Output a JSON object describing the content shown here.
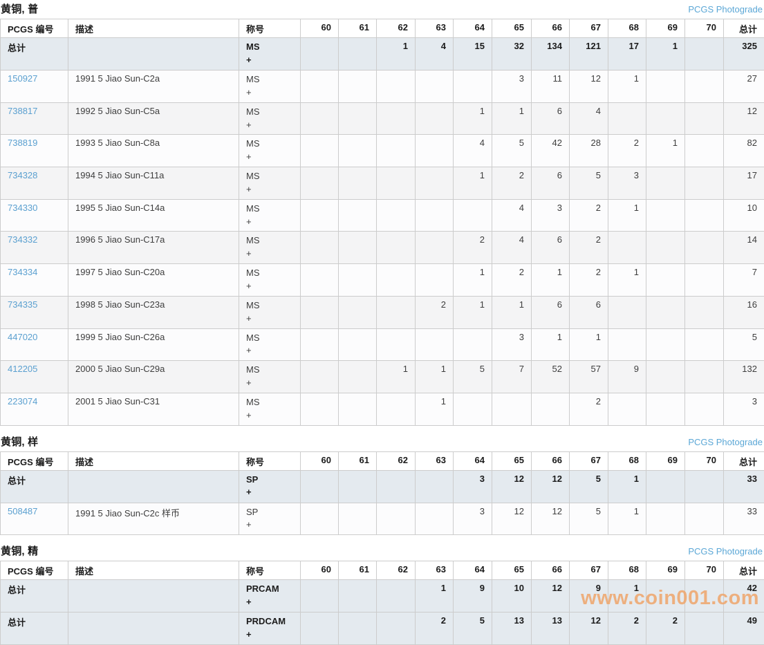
{
  "photograde_label": "PCGS Photograde",
  "watermark_text": "www.coin001.com",
  "colors": {
    "link": "#5ba0d0",
    "photograde": "#5ba7d6",
    "total_row_bg": "#e4eaef",
    "watermark": "#f0a366"
  },
  "columns": [
    "PCGS 编号",
    "描述",
    "称号",
    "60",
    "61",
    "62",
    "63",
    "64",
    "65",
    "66",
    "67",
    "68",
    "69",
    "70",
    "总计"
  ],
  "totals_label": "总计",
  "sections": [
    {
      "title": "黄铜, 普",
      "rows": [
        {
          "id": "总计",
          "is_link": false,
          "is_total": true,
          "desc": "",
          "designation": "MS\n+",
          "grades": [
            "",
            "",
            "1",
            "4",
            "15",
            "32",
            "134",
            "121",
            "17",
            "1",
            ""
          ],
          "total": "325"
        },
        {
          "id": "150927",
          "is_link": true,
          "is_total": false,
          "desc": "1991 5 Jiao Sun-C2a",
          "designation": "MS\n+",
          "grades": [
            "",
            "",
            "",
            "",
            "",
            "3",
            "11",
            "12",
            "1",
            "",
            ""
          ],
          "total": "27"
        },
        {
          "id": "738817",
          "is_link": true,
          "is_total": false,
          "desc": "1992 5 Jiao Sun-C5a",
          "designation": "MS\n+",
          "grades": [
            "",
            "",
            "",
            "",
            "1",
            "1",
            "6",
            "4",
            "",
            "",
            ""
          ],
          "total": "12"
        },
        {
          "id": "738819",
          "is_link": true,
          "is_total": false,
          "desc": "1993 5 Jiao Sun-C8a",
          "designation": "MS\n+",
          "grades": [
            "",
            "",
            "",
            "",
            "4",
            "5",
            "42",
            "28",
            "2",
            "1",
            ""
          ],
          "total": "82"
        },
        {
          "id": "734328",
          "is_link": true,
          "is_total": false,
          "desc": "1994 5 Jiao Sun-C11a",
          "designation": "MS\n+",
          "grades": [
            "",
            "",
            "",
            "",
            "1",
            "2",
            "6",
            "5",
            "3",
            "",
            ""
          ],
          "total": "17"
        },
        {
          "id": "734330",
          "is_link": true,
          "is_total": false,
          "desc": "1995 5 Jiao Sun-C14a",
          "designation": "MS\n+",
          "grades": [
            "",
            "",
            "",
            "",
            "",
            "4",
            "3",
            "2",
            "1",
            "",
            ""
          ],
          "total": "10"
        },
        {
          "id": "734332",
          "is_link": true,
          "is_total": false,
          "desc": "1996 5 Jiao Sun-C17a",
          "designation": "MS\n+",
          "grades": [
            "",
            "",
            "",
            "",
            "2",
            "4",
            "6",
            "2",
            "",
            "",
            ""
          ],
          "total": "14"
        },
        {
          "id": "734334",
          "is_link": true,
          "is_total": false,
          "desc": "1997 5 Jiao Sun-C20a",
          "designation": "MS\n+",
          "grades": [
            "",
            "",
            "",
            "",
            "1",
            "2",
            "1",
            "2",
            "1",
            "",
            ""
          ],
          "total": "7"
        },
        {
          "id": "734335",
          "is_link": true,
          "is_total": false,
          "desc": "1998 5 Jiao Sun-C23a",
          "designation": "MS\n+",
          "grades": [
            "",
            "",
            "",
            "2",
            "1",
            "1",
            "6",
            "6",
            "",
            "",
            ""
          ],
          "total": "16"
        },
        {
          "id": "447020",
          "is_link": true,
          "is_total": false,
          "desc": "1999 5 Jiao Sun-C26a",
          "designation": "MS\n+",
          "grades": [
            "",
            "",
            "",
            "",
            "",
            "3",
            "1",
            "1",
            "",
            "",
            ""
          ],
          "total": "5"
        },
        {
          "id": "412205",
          "is_link": true,
          "is_total": false,
          "desc": "2000 5 Jiao Sun-C29a",
          "designation": "MS\n+",
          "grades": [
            "",
            "",
            "1",
            "1",
            "5",
            "7",
            "52",
            "57",
            "9",
            "",
            ""
          ],
          "total": "132"
        },
        {
          "id": "223074",
          "is_link": true,
          "is_total": false,
          "desc": "2001 5 Jiao Sun-C31",
          "designation": "MS\n+",
          "grades": [
            "",
            "",
            "",
            "1",
            "",
            "",
            "",
            "2",
            "",
            "",
            ""
          ],
          "total": "3"
        }
      ]
    },
    {
      "title": "黄铜, 样",
      "rows": [
        {
          "id": "总计",
          "is_link": false,
          "is_total": true,
          "desc": "",
          "designation": "SP\n+",
          "grades": [
            "",
            "",
            "",
            "",
            "3",
            "12",
            "12",
            "5",
            "1",
            "",
            ""
          ],
          "total": "33"
        },
        {
          "id": "508487",
          "is_link": true,
          "is_total": false,
          "desc": "1991 5 Jiao Sun-C2c 样币",
          "designation": "SP\n+",
          "grades": [
            "",
            "",
            "",
            "",
            "3",
            "12",
            "12",
            "5",
            "1",
            "",
            ""
          ],
          "total": "33"
        }
      ]
    },
    {
      "title": "黄铜, 精",
      "rows": [
        {
          "id": "总计",
          "is_link": false,
          "is_total": true,
          "desc": "",
          "designation": "PRCAM\n+",
          "grades": [
            "",
            "",
            "",
            "1",
            "9",
            "10",
            "12",
            "9",
            "1",
            "",
            ""
          ],
          "total": "42"
        },
        {
          "id": "总计",
          "is_link": false,
          "is_total": true,
          "desc": "",
          "designation": "PRDCAM\n+",
          "grades": [
            "",
            "",
            "",
            "2",
            "5",
            "13",
            "13",
            "12",
            "2",
            "2",
            ""
          ],
          "total": "49"
        }
      ]
    }
  ]
}
